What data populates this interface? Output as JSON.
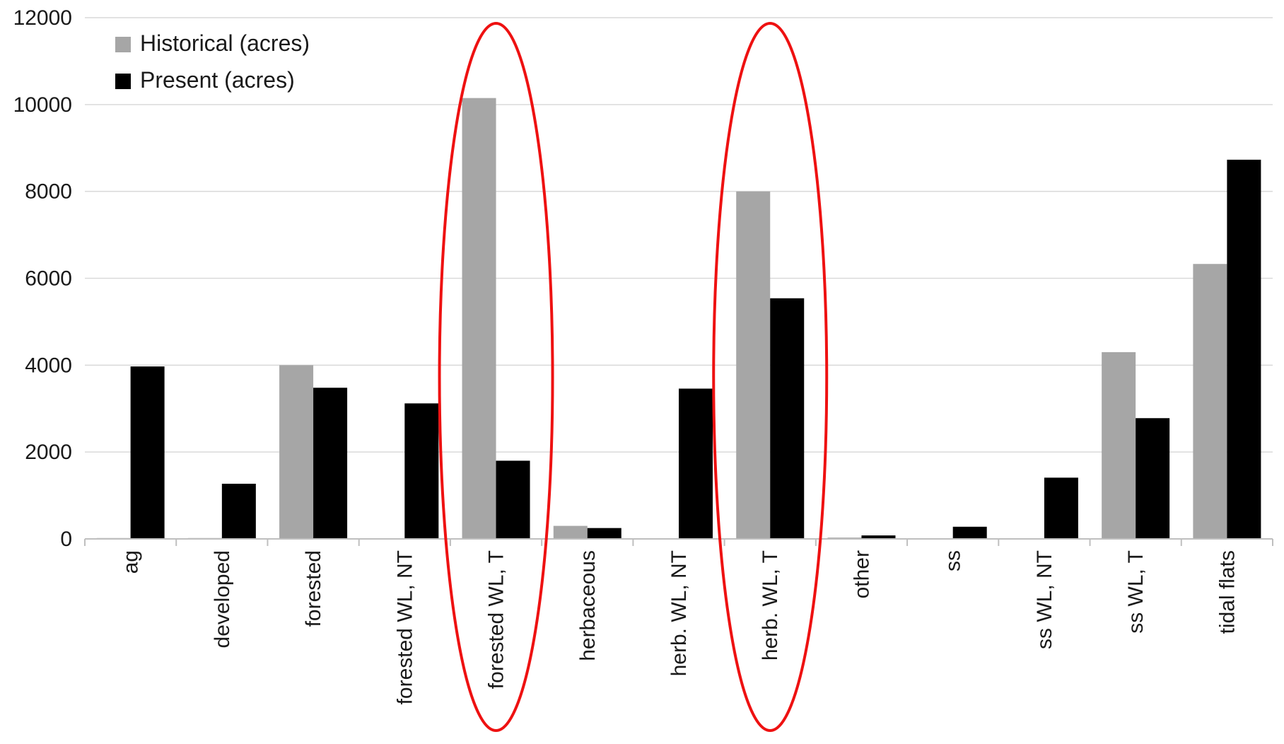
{
  "chart_data": {
    "type": "bar",
    "title": "",
    "xlabel": "",
    "ylabel": "",
    "ylim": [
      0,
      12000
    ],
    "yticks": [
      0,
      2000,
      4000,
      6000,
      8000,
      10000,
      12000
    ],
    "grid": true,
    "legend_position": "top-left",
    "categories": [
      "ag",
      "developed",
      "forested",
      "forested WL, NT",
      "forested WL, T",
      "herbaceous",
      "herb. WL, NT",
      "herb. WL, T",
      "other",
      "ss",
      "ss WL, NT",
      "ss WL, T",
      "tidal flats"
    ],
    "series": [
      {
        "name": "Historical (acres)",
        "color": "#a6a6a6",
        "values": [
          20,
          20,
          4000,
          0,
          10150,
          300,
          0,
          8000,
          30,
          10,
          0,
          4300,
          6330
        ]
      },
      {
        "name": "Present (acres)",
        "color": "#000000",
        "values": [
          3970,
          1270,
          3480,
          3120,
          1800,
          250,
          3460,
          5540,
          80,
          280,
          1410,
          2780,
          8730
        ]
      }
    ],
    "highlighted_categories": [
      "forested WL, T",
      "herb. WL, T"
    ],
    "highlight_color": "#ee1111"
  }
}
